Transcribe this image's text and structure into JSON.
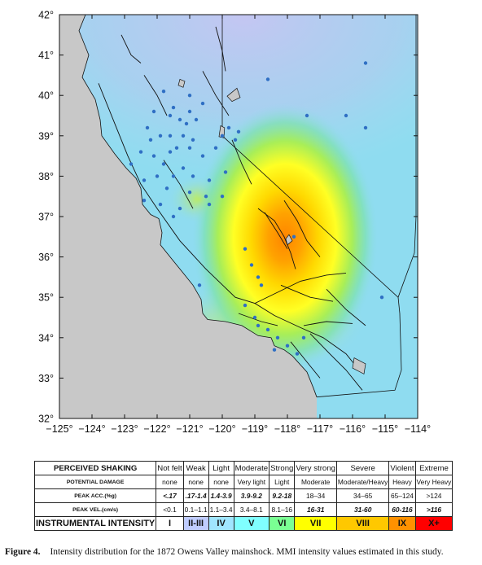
{
  "map": {
    "lon_range": [
      -125,
      -114
    ],
    "lat_range": [
      32,
      42
    ],
    "lon_ticks": [
      -125,
      -124,
      -123,
      -122,
      -121,
      -120,
      -119,
      -118,
      -117,
      -116,
      -115,
      -114
    ],
    "lat_ticks": [
      32,
      33,
      34,
      35,
      36,
      37,
      38,
      39,
      40,
      41,
      42
    ],
    "lon_tick_labels": [
      "−125°",
      "−124°",
      "−123°",
      "−122°",
      "−121°",
      "−120°",
      "−119°",
      "−118°",
      "−117°",
      "−116°",
      "−115°",
      "−114°"
    ],
    "lat_tick_labels": [
      "32°",
      "33°",
      "34°",
      "35°",
      "36°",
      "37°",
      "38°",
      "39°",
      "40°",
      "41°",
      "42°"
    ],
    "colors": {
      "ocean": "#c8c8c8",
      "land_base": "#8fdcf0",
      "dots": "#2f6fc4",
      "lines": "#111111"
    },
    "epicenter": {
      "lon": -118.05,
      "lat": 36.6
    },
    "observation_points": [
      [
        -121.8,
        40.1
      ],
      [
        -121.0,
        40.0
      ],
      [
        -120.6,
        39.8
      ],
      [
        -121.5,
        39.7
      ],
      [
        -122.1,
        39.6
      ],
      [
        -121.6,
        39.5
      ],
      [
        -121.3,
        39.4
      ],
      [
        -121.1,
        39.3
      ],
      [
        -120.8,
        39.4
      ],
      [
        -122.3,
        39.2
      ],
      [
        -121.9,
        39.0
      ],
      [
        -121.6,
        39.0
      ],
      [
        -121.2,
        39.0
      ],
      [
        -120.9,
        38.9
      ],
      [
        -121.4,
        38.7
      ],
      [
        -121.0,
        38.7
      ],
      [
        -122.5,
        38.6
      ],
      [
        -122.1,
        38.5
      ],
      [
        -121.8,
        38.3
      ],
      [
        -121.2,
        38.2
      ],
      [
        -120.9,
        38.0
      ],
      [
        -121.5,
        38.0
      ],
      [
        -122.0,
        38.0
      ],
      [
        -122.4,
        37.9
      ],
      [
        -122.8,
        38.3
      ],
      [
        -121.7,
        37.7
      ],
      [
        -121.0,
        37.6
      ],
      [
        -120.5,
        37.5
      ],
      [
        -120.4,
        37.3
      ],
      [
        -122.4,
        37.4
      ],
      [
        -121.9,
        37.3
      ],
      [
        -121.5,
        37.0
      ],
      [
        -121.3,
        37.2
      ],
      [
        -120.0,
        37.5
      ],
      [
        -119.9,
        38.1
      ],
      [
        -120.6,
        38.5
      ],
      [
        -120.2,
        38.7
      ],
      [
        -119.6,
        38.9
      ],
      [
        -119.8,
        39.2
      ],
      [
        -119.5,
        39.1
      ],
      [
        -118.6,
        40.4
      ],
      [
        -117.4,
        39.5
      ],
      [
        -116.2,
        39.5
      ],
      [
        -115.6,
        39.2
      ],
      [
        -115.6,
        40.8
      ],
      [
        -119.3,
        36.2
      ],
      [
        -119.1,
        35.8
      ],
      [
        -118.9,
        35.5
      ],
      [
        -118.8,
        35.3
      ],
      [
        -119.3,
        34.8
      ],
      [
        -119.0,
        34.5
      ],
      [
        -118.6,
        34.2
      ],
      [
        -118.3,
        34.0
      ],
      [
        -118.0,
        33.8
      ],
      [
        -117.7,
        33.6
      ],
      [
        -115.1,
        35.0
      ],
      [
        -117.8,
        36.5
      ],
      [
        -120.7,
        35.3
      ],
      [
        -118.9,
        34.3
      ],
      [
        -120.0,
        39.0
      ],
      [
        -121.6,
        38.6
      ],
      [
        -122.2,
        38.9
      ],
      [
        -121.0,
        39.6
      ],
      [
        -120.4,
        37.9
      ],
      [
        -117.5,
        34.0
      ],
      [
        -118.4,
        33.7
      ]
    ]
  },
  "table": {
    "row_headers": [
      "PERCEIVED SHAKING",
      "POTENTIAL DAMAGE",
      "PEAK ACC.(%g)",
      "PEAK VEL.(cm/s)",
      "INSTRUMENTAL INTENSITY"
    ],
    "shaking": [
      "Not felt",
      "Weak",
      "Light",
      "Moderate",
      "Strong",
      "Very strong",
      "Severe",
      "Violent",
      "Extreme"
    ],
    "damage": [
      "none",
      "none",
      "none",
      "Very light",
      "Light",
      "Moderate",
      "Moderate/Heavy",
      "Heavy",
      "Very Heavy"
    ],
    "acc": [
      "<.17",
      ".17-1.4",
      "1.4-3.9",
      "3.9-9.2",
      "9.2-18",
      "18–34",
      "34–65",
      "65–124",
      ">124"
    ],
    "vel": [
      "<0.1",
      "0.1–1.1",
      "1.1–3.4",
      "3.4–8.1",
      "8.1–16",
      "16-31",
      "31-60",
      "60-116",
      ">116"
    ],
    "intensity": [
      "I",
      "II-III",
      "IV",
      "V",
      "VI",
      "VII",
      "VIII",
      "IX",
      "X+"
    ],
    "intensity_colors": [
      "#ffffff",
      "#bfccff",
      "#a0e6ff",
      "#80ffff",
      "#7aff93",
      "#ffff00",
      "#ffc800",
      "#ff9100",
      "#ff0000"
    ]
  },
  "caption": {
    "label": "Figure 4.",
    "text": "Intensity distribution for the 1872 Owens Valley mainshock. MMI intensity values estimated in this study."
  }
}
